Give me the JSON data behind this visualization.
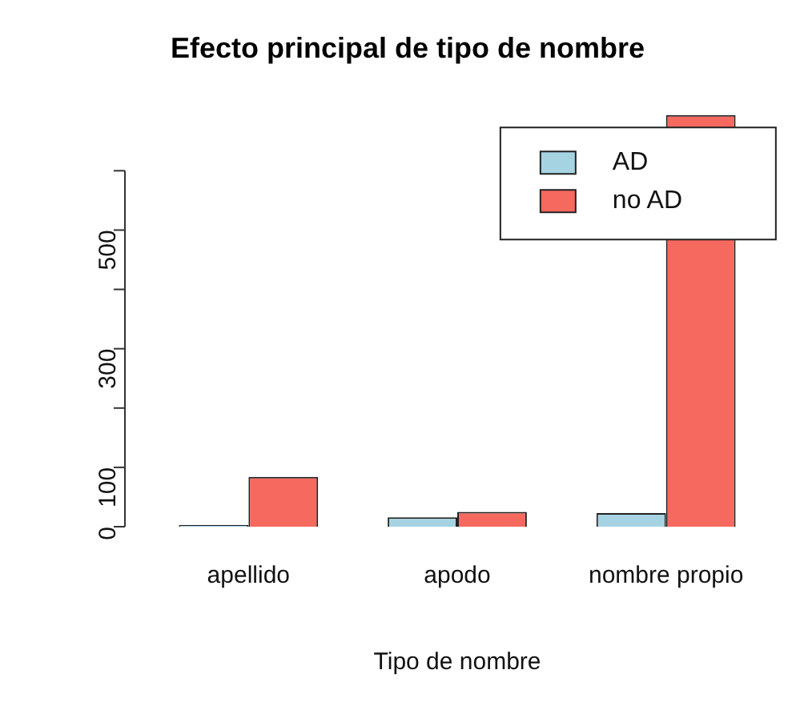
{
  "chart_data": {
    "type": "bar",
    "title": "Efecto principal de tipo de nombre",
    "xlabel": "Tipo de nombre",
    "categories": [
      "apellido",
      "apodo",
      "nombre propio"
    ],
    "series": [
      {
        "name": "AD",
        "color": "#a6d3e2",
        "values": [
          3,
          16,
          23
        ]
      },
      {
        "name": "no AD",
        "color": "#f6695e",
        "values": [
          84,
          25,
          694
        ]
      }
    ],
    "ylim": [
      0,
      700
    ],
    "yticks": [
      0,
      100,
      {
        "value": 200,
        "label": null
      },
      300,
      {
        "value": 400,
        "label": null
      },
      500,
      {
        "value": 600,
        "label": null
      }
    ],
    "grid": false,
    "legend": "top right"
  }
}
